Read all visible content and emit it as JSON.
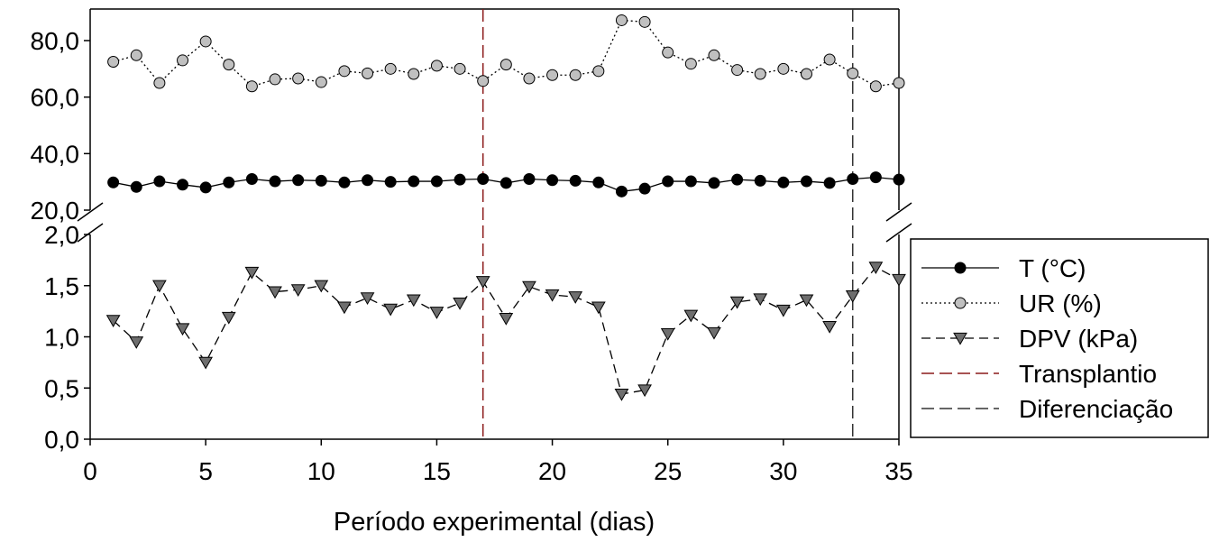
{
  "chart_data": {
    "type": "line",
    "title": "",
    "xlabel": "Período experimental (dias)",
    "ylabel": "",
    "xlim": [
      0,
      35
    ],
    "x_ticks": [
      "0",
      "5",
      "10",
      "15",
      "20",
      "25",
      "30",
      "35"
    ],
    "y_axis_break": {
      "upper_panel": {
        "ylim": [
          20,
          90
        ],
        "ticks": [
          "20,0",
          "40,0",
          "60,0",
          "80,0"
        ]
      },
      "lower_panel": {
        "ylim": [
          0,
          2
        ],
        "ticks": [
          "0,0",
          "0,5",
          "1,0",
          "1,5",
          "2,0"
        ]
      }
    },
    "grid": false,
    "legend_position": "right",
    "x": [
      1,
      2,
      3,
      4,
      5,
      6,
      7,
      8,
      9,
      10,
      11,
      12,
      13,
      14,
      15,
      16,
      17,
      18,
      19,
      20,
      21,
      22,
      23,
      24,
      25,
      26,
      27,
      28,
      29,
      30,
      31,
      32,
      33,
      34,
      35
    ],
    "series": [
      {
        "name": "T (°C)",
        "panel": "upper",
        "marker": "circle",
        "marker_color": "#000000",
        "line_style": "solid",
        "values": [
          29.8,
          28.2,
          30.2,
          29.0,
          28.0,
          29.8,
          31.0,
          30.2,
          30.6,
          30.4,
          29.8,
          30.6,
          30.0,
          30.2,
          30.2,
          30.8,
          31.0,
          29.6,
          31.0,
          30.6,
          30.4,
          29.8,
          26.6,
          27.6,
          30.2,
          30.2,
          29.6,
          30.8,
          30.4,
          29.8,
          30.2,
          29.6,
          31.0,
          31.6,
          30.8
        ]
      },
      {
        "name": "UR (%)",
        "panel": "upper",
        "marker": "circle",
        "marker_color": "#c0c0c0",
        "line_style": "dotted",
        "values": [
          72.5,
          74.8,
          65.0,
          73.0,
          79.7,
          71.5,
          63.8,
          66.3,
          66.6,
          65.3,
          69.2,
          68.4,
          70.0,
          68.2,
          71.1,
          70.0,
          65.7,
          71.5,
          66.6,
          67.8,
          67.8,
          69.2,
          87.2,
          86.6,
          75.8,
          71.8,
          74.8,
          69.6,
          68.2,
          70.0,
          68.2,
          73.3,
          68.4,
          63.8,
          65.0
        ]
      },
      {
        "name": "DPV (kPa)",
        "panel": "lower",
        "marker": "triangle-down",
        "marker_color": "#6e6e6e",
        "line_style": "dashed",
        "values": [
          1.16,
          0.95,
          1.5,
          1.08,
          0.75,
          1.19,
          1.63,
          1.44,
          1.46,
          1.5,
          1.29,
          1.38,
          1.27,
          1.36,
          1.24,
          1.33,
          1.54,
          1.18,
          1.49,
          1.41,
          1.39,
          1.29,
          0.44,
          0.48,
          1.03,
          1.21,
          1.04,
          1.34,
          1.37,
          1.26,
          1.36,
          1.1,
          1.4,
          1.68,
          1.56
        ]
      }
    ],
    "reference_lines": [
      {
        "name": "Transplantio",
        "x": 17,
        "color": "#8b1a1a",
        "line_style": "dashed"
      },
      {
        "name": "Diferenciação",
        "x": 33,
        "color": "#333333",
        "line_style": "dashed"
      }
    ]
  }
}
